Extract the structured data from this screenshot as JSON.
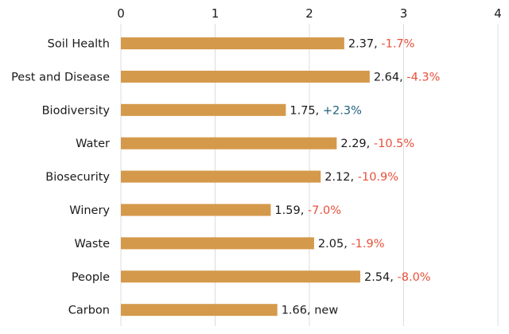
{
  "chart_data": {
    "type": "bar",
    "orientation": "horizontal",
    "title": "",
    "xlabel": "",
    "ylabel": "",
    "xlim": [
      0,
      4
    ],
    "x_ticks": [
      "0",
      "1",
      "2",
      "3",
      "4"
    ],
    "x_tick_values": [
      0,
      1,
      2,
      3,
      4
    ],
    "grid": true,
    "bar_color": "#d4994a",
    "change_colors": {
      "negative": "#e8503a",
      "positive": "#1f5f7a",
      "neutral": "#1a1a1a"
    },
    "categories": [
      "Soil Health",
      "Pest and Disease",
      "Biodiversity",
      "Water",
      "Biosecurity",
      "Winery",
      "Waste",
      "People",
      "Carbon"
    ],
    "values": [
      2.37,
      2.64,
      1.75,
      2.29,
      2.12,
      1.59,
      2.05,
      2.54,
      1.66
    ],
    "value_labels": [
      "2.37",
      "2.64",
      "1.75",
      "2.29",
      "2.12",
      "1.59",
      "2.05",
      "2.54",
      "1.66"
    ],
    "changes": [
      "-1.7%",
      "-4.3%",
      "+2.3%",
      "-10.5%",
      "-10.9%",
      "-7.0%",
      "-1.9%",
      "-8.0%",
      "new"
    ],
    "change_types": [
      "negative",
      "negative",
      "positive",
      "negative",
      "negative",
      "negative",
      "negative",
      "negative",
      "neutral"
    ]
  }
}
